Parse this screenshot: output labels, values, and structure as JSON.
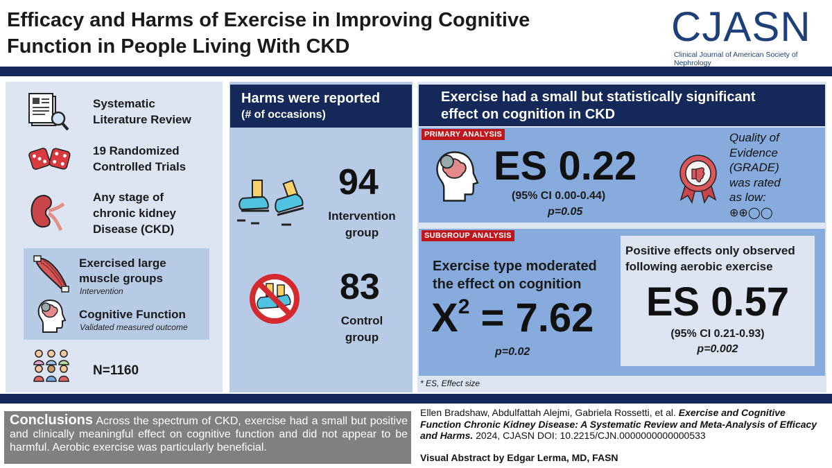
{
  "header": {
    "title_line1": "Efficacy and Harms of Exercise in Improving Cognitive",
    "title_line2": "Function in People Living With CKD",
    "logo_text": "CJASN",
    "logo_sub": "Clinical Journal of American Society of Nephrology"
  },
  "left": {
    "item1_line1": "Systematic",
    "item1_line2": "Literature Review",
    "item2_line1": "19 Randomized",
    "item2_line2": "Controlled Trials",
    "item3_line1": "Any stage of",
    "item3_line2": "chronic kidney",
    "item3_line3": "Disease (CKD)",
    "intervention_line1": "Exercised large",
    "intervention_line2": "muscle groups",
    "intervention_caption": "Intervention",
    "outcome_label": "Cognitive Function",
    "outcome_caption": "Validated measured outcome",
    "n_label": "N=1160"
  },
  "harms": {
    "header_line1": "Harms were reported",
    "header_line2": "(# of occasions)",
    "intervention_value": "94",
    "intervention_line1": "Intervention",
    "intervention_line2": "group",
    "control_value": "83",
    "control_line1": "Control",
    "control_line2": "group"
  },
  "effect": {
    "header_line1": "Exercise had a small but statistically significant",
    "header_line2": "effect on cognition in CKD",
    "primary_tag": "PRIMARY ANALYSIS",
    "primary_es": "ES 0.22",
    "primary_ci": "(95% CI 0.00-0.44)",
    "primary_p": "p=0.05",
    "quality_l1": "Quality of",
    "quality_l2": "Evidence",
    "quality_l3": "(GRADE)",
    "quality_l4": "was rated",
    "quality_l5": "as low:",
    "quality_symbols": "⊕⊕◯◯",
    "subgroup_tag": "SUBGROUP ANALYSIS",
    "moderated_line1": "Exercise type moderated",
    "moderated_line2": "the effect on cognition",
    "chi_label": "X",
    "chi_sup": "2",
    "chi_value": " = 7.62",
    "chi_p": "p=0.02",
    "aerobic_line1": "Positive effects only observed",
    "aerobic_line2": "following aerobic exercise",
    "aerobic_es": "ES 0.57",
    "aerobic_ci": "(95% CI 0.21-0.93)",
    "aerobic_p": "p=0.002",
    "footnote": "* ES, Effect size"
  },
  "conclusions": {
    "label": "Conclusions",
    "text": " Across the spectrum of CKD, exercise had a small but positive and clinically meaningful effect on cognitive function and did not appear to be harmful. Aerobic exercise was particularly beneficial."
  },
  "citation": {
    "authors": "Ellen Bradshaw, Abdulfattah Alejmi, Gabriela Rossetti, et al. ",
    "title": "Exercise and Cognitive Function Chronic Kidney Disease: A Systematic Review and Meta-Analysis of Efficacy and Harms.",
    "rest": " 2024, CJASN DOI: 10.2215/CJN.0000000000000533",
    "credit": "Visual Abstract by Edgar Lerma, MD, FASN"
  },
  "colors": {
    "navy": "#14285a",
    "red": "#c0161b",
    "panel_light": "#dde5f2",
    "panel_mid": "#b8cbe6",
    "panel_blue": "#87abdc"
  }
}
